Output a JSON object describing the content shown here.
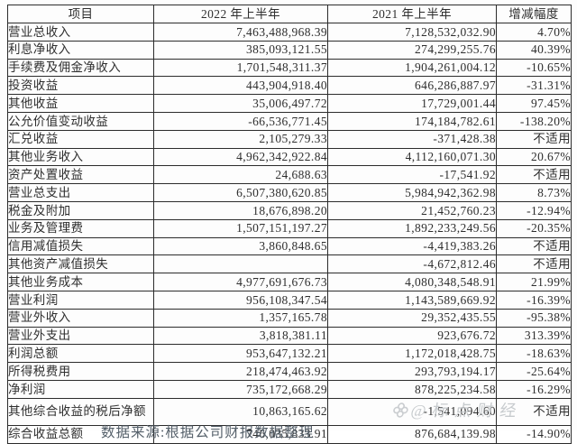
{
  "colors": {
    "text": "#2e2e2e",
    "border": "#2c2c2c",
    "watermark": "#c2c6c9",
    "caption": "#55606a",
    "background": "#ffffff"
  },
  "table": {
    "headers": [
      "项目",
      "2022 年上半年",
      "2021 年上半年",
      "增减幅度"
    ],
    "rows": [
      {
        "item": "营业总收入",
        "h1_2022": "7,463,488,968.39",
        "h1_2021": "7,128,532,032.90",
        "change": "4.70%"
      },
      {
        "item": "利息净收入",
        "h1_2022": "385,093,121.55",
        "h1_2021": "274,299,255.76",
        "change": "40.39%"
      },
      {
        "item": "手续费及佣金净收入",
        "h1_2022": "1,701,548,311.37",
        "h1_2021": "1,904,261,004.12",
        "change": "-10.65%"
      },
      {
        "item": "投资收益",
        "h1_2022": "443,904,918.40",
        "h1_2021": "646,286,887.97",
        "change": "-31.31%"
      },
      {
        "item": "其他收益",
        "h1_2022": "35,006,497.72",
        "h1_2021": "17,729,001.44",
        "change": "97.45%"
      },
      {
        "item": "公允价值变动收益",
        "h1_2022": "-66,536,771.45",
        "h1_2021": "174,184,782.61",
        "change": "-138.20%"
      },
      {
        "item": "汇兑收益",
        "h1_2022": "2,105,279.33",
        "h1_2021": "-371,428.38",
        "change": "不适用"
      },
      {
        "item": "其他业务收入",
        "h1_2022": "4,962,342,922.84",
        "h1_2021": "4,112,160,071.30",
        "change": "20.67%"
      },
      {
        "item": "资产处置收益",
        "h1_2022": "24,688.63",
        "h1_2021": "-17,541.92",
        "change": "不适用"
      },
      {
        "item": "营业总支出",
        "h1_2022": "6,507,380,620.85",
        "h1_2021": "5,984,942,362.98",
        "change": "8.73%"
      },
      {
        "item": "税金及附加",
        "h1_2022": "18,676,898.20",
        "h1_2021": "21,452,760.23",
        "change": "-12.94%"
      },
      {
        "item": "业务及管理费",
        "h1_2022": "1,507,151,197.27",
        "h1_2021": "1,892,233,249.56",
        "change": "-20.35%"
      },
      {
        "item": "信用减值损失",
        "h1_2022": "3,860,848.65",
        "h1_2021": "-4,419,383.26",
        "change": "不适用"
      },
      {
        "item": "其他资产减值损失",
        "h1_2022": "",
        "h1_2021": "-4,672,812.46",
        "change": "不适用"
      },
      {
        "item": "其他业务成本",
        "h1_2022": "4,977,691,676.73",
        "h1_2021": "4,080,348,548.91",
        "change": "21.99%"
      },
      {
        "item": "营业利润",
        "h1_2022": "956,108,347.54",
        "h1_2021": "1,143,589,669.92",
        "change": "-16.39%"
      },
      {
        "item": "营业外收入",
        "h1_2022": "1,357,165.78",
        "h1_2021": "29,352,435.55",
        "change": "-95.38%"
      },
      {
        "item": "营业外支出",
        "h1_2022": "3,818,381.11",
        "h1_2021": "923,676.72",
        "change": "313.39%"
      },
      {
        "item": "利润总额",
        "h1_2022": "953,647,132.21",
        "h1_2021": "1,172,018,428.75",
        "change": "-18.63%"
      },
      {
        "item": "所得税费用",
        "h1_2022": "218,474,463.92",
        "h1_2021": "293,793,194.17",
        "change": "-25.64%"
      },
      {
        "item": "净利润",
        "h1_2022": "735,172,668.29",
        "h1_2021": "878,225,234.58",
        "change": "-16.29%"
      },
      {
        "item": "其他综合收益的税后净额",
        "h1_2022": "10,863,165.62",
        "h1_2021": "-1,541,094.60",
        "change": "不适用",
        "tall": true
      },
      {
        "item": "综合收益总额",
        "h1_2022": "746,035,833.91",
        "h1_2021": "876,684,139.98",
        "change": "-14.90%"
      }
    ]
  },
  "watermark": {
    "text": "@标点财经"
  },
  "caption": {
    "text": "数据来源:根据公司财报数据整理"
  }
}
